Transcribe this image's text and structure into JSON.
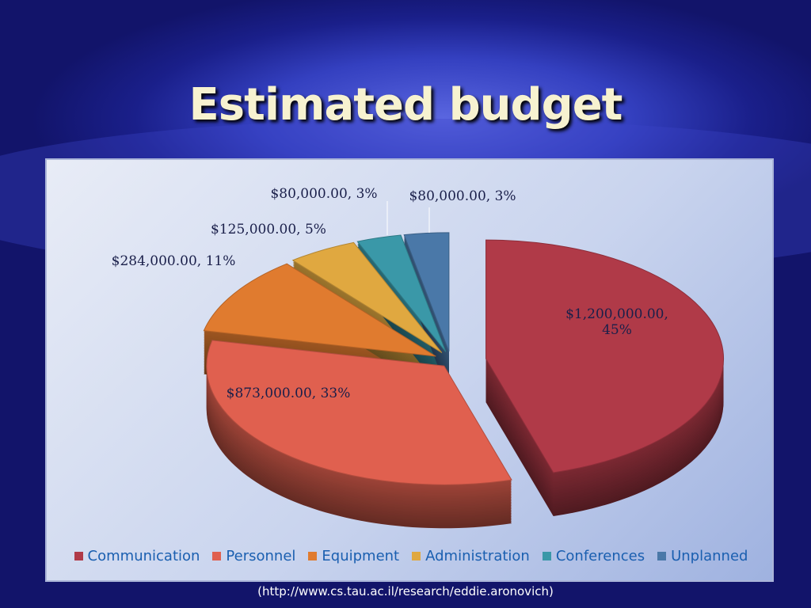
{
  "chart_data": {
    "type": "pie",
    "title": "Estimated budget",
    "categories": [
      "Communication",
      "Personnel",
      "Equipment",
      "Administration",
      "Conferences",
      "Unplanned"
    ],
    "values": [
      1200000,
      873000,
      284000,
      125000,
      80000,
      80000
    ],
    "value_labels": [
      "$1,200,000.00, 45%",
      "$873,000.00, 33%",
      "$284,000.00, 11%",
      "$125,000.00, 5%",
      "$80,000.00, 3%",
      "$80,000.00, 3%"
    ],
    "colors": [
      "#b03a48",
      "#e0604f",
      "#e07b2f",
      "#e0a840",
      "#3a98a8",
      "#4a78a8"
    ],
    "legend": "bottom",
    "source": "(http://www.cs.tau.ac.il/research/eddie.aronovich)"
  }
}
